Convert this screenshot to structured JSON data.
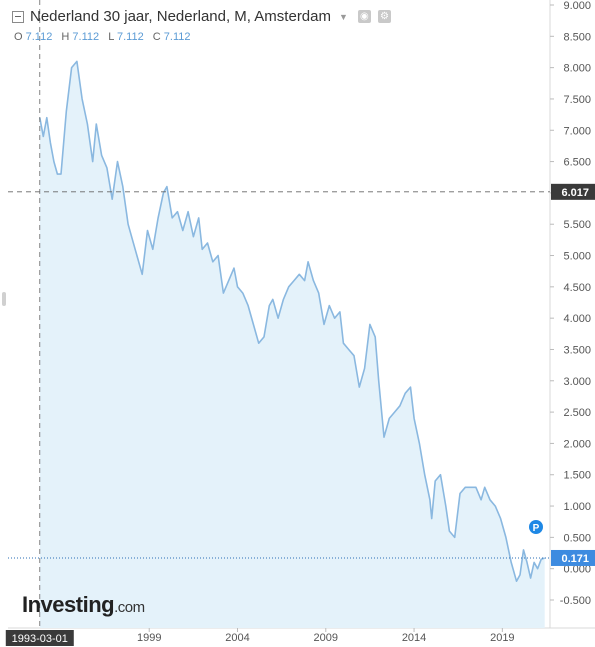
{
  "header": {
    "title": "Nederland 30 jaar, Nederland, M, Amsterdam",
    "ohlc": [
      {
        "key": "O",
        "value": "7.112"
      },
      {
        "key": "H",
        "value": "7.112"
      },
      {
        "key": "L",
        "value": "7.112"
      },
      {
        "key": "C",
        "value": "7.112"
      }
    ]
  },
  "watermark": {
    "brand": "Investing",
    "suffix": ".com"
  },
  "crosshair": {
    "date_label": "1993-03-01",
    "price_label": "6.017"
  },
  "last_price_label": "0.171",
  "marker_label": "P",
  "colors": {
    "line": "#8ab8e0",
    "fill": "#e4f2fa",
    "last_label_bg": "#3d8be0",
    "crosshair_label_bg": "#3a3a3a",
    "marker": "#1e88e5"
  },
  "chart_data": {
    "type": "area",
    "xlabel": "",
    "ylabel": "",
    "x_ticks": [
      "1999",
      "2004",
      "2009",
      "2014",
      "2019"
    ],
    "y_ticks": [
      "9.000",
      "8.500",
      "8.000",
      "7.500",
      "7.000",
      "6.500",
      "6.000",
      "5.500",
      "5.000",
      "4.500",
      "4.000",
      "3.500",
      "3.000",
      "2.500",
      "2.000",
      "1.500",
      "1.000",
      "0.500",
      "0.000",
      "-0.500"
    ],
    "ylim": [
      -0.5,
      9.0
    ],
    "xlim": [
      1991.0,
      2021.7
    ],
    "x": [
      1992.8,
      1993.0,
      1993.2,
      1993.4,
      1993.6,
      1993.8,
      1994.0,
      1994.3,
      1994.6,
      1994.9,
      1995.2,
      1995.5,
      1995.8,
      1996.0,
      1996.3,
      1996.6,
      1996.9,
      1997.2,
      1997.5,
      1997.8,
      1998.0,
      1998.3,
      1998.6,
      1998.9,
      1999.2,
      1999.5,
      1999.8,
      2000.0,
      2000.3,
      2000.6,
      2000.9,
      2001.2,
      2001.5,
      2001.8,
      2002.0,
      2002.3,
      2002.6,
      2002.9,
      2003.2,
      2003.5,
      2003.8,
      2004.0,
      2004.3,
      2004.6,
      2004.9,
      2005.2,
      2005.5,
      2005.8,
      2006.0,
      2006.3,
      2006.6,
      2006.9,
      2007.2,
      2007.5,
      2007.8,
      2008.0,
      2008.3,
      2008.6,
      2008.9,
      2009.2,
      2009.5,
      2009.8,
      2010.0,
      2010.3,
      2010.6,
      2010.9,
      2011.2,
      2011.5,
      2011.8,
      2012.0,
      2012.3,
      2012.6,
      2012.9,
      2013.2,
      2013.5,
      2013.8,
      2014.0,
      2014.3,
      2014.6,
      2014.9,
      2015.0,
      2015.2,
      2015.5,
      2015.8,
      2016.0,
      2016.3,
      2016.6,
      2016.9,
      2017.2,
      2017.5,
      2017.8,
      2018.0,
      2018.3,
      2018.6,
      2018.9,
      2019.2,
      2019.5,
      2019.8,
      2020.0,
      2020.2,
      2020.4,
      2020.6,
      2020.8,
      2021.0,
      2021.2,
      2021.4
    ],
    "series": [
      {
        "values": [
          7.2,
          6.9,
          7.2,
          6.8,
          6.5,
          6.3,
          6.3,
          7.3,
          8.0,
          8.1,
          7.5,
          7.1,
          6.5,
          7.1,
          6.6,
          6.4,
          5.9,
          6.5,
          6.1,
          5.5,
          5.3,
          5.0,
          4.7,
          5.4,
          5.1,
          5.6,
          6.0,
          6.1,
          5.6,
          5.7,
          5.4,
          5.7,
          5.3,
          5.6,
          5.1,
          5.2,
          4.9,
          5.0,
          4.4,
          4.6,
          4.8,
          4.5,
          4.4,
          4.2,
          3.9,
          3.6,
          3.7,
          4.2,
          4.3,
          4.0,
          4.3,
          4.5,
          4.6,
          4.7,
          4.6,
          4.9,
          4.6,
          4.4,
          3.9,
          4.2,
          4.0,
          4.1,
          3.6,
          3.5,
          3.4,
          2.9,
          3.2,
          3.9,
          3.7,
          3.0,
          2.1,
          2.4,
          2.5,
          2.6,
          2.8,
          2.9,
          2.4,
          2.0,
          1.5,
          1.1,
          0.8,
          1.4,
          1.5,
          1.0,
          0.6,
          0.5,
          1.2,
          1.3,
          1.3,
          1.3,
          1.1,
          1.3,
          1.1,
          1.0,
          0.8,
          0.5,
          0.1,
          -0.2,
          -0.1,
          0.3,
          0.1,
          -0.15,
          0.1,
          0.0,
          0.15,
          0.171
        ]
      }
    ],
    "grid": false,
    "legend": "none"
  }
}
